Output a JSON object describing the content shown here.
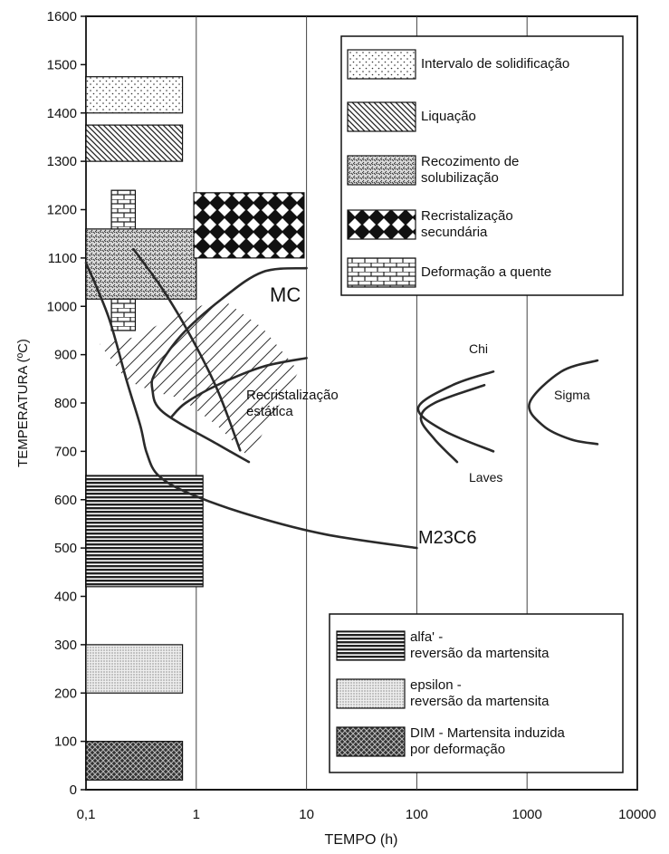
{
  "chart_data": {
    "type": "region-diagram",
    "y_label": "TEMPERATURA (ºC)",
    "x_label": "TEMPO (h)",
    "xscale": "log",
    "grid": "x",
    "xlim": [
      0.1,
      10000
    ],
    "ylim": [
      0,
      1600
    ],
    "xticks": [
      {
        "value": 0.1,
        "label": "0,1"
      },
      1,
      10,
      100,
      1000,
      10000
    ],
    "yticks": [
      0,
      100,
      200,
      300,
      400,
      500,
      600,
      700,
      800,
      900,
      1000,
      1100,
      1200,
      1300,
      1400,
      1500,
      1600
    ],
    "legend_items": [
      {
        "name": "Intervalo de solidificação",
        "pattern": "dots",
        "areas": [
          {
            "x": [
              0.1,
              0.75
            ],
            "y": [
              1400,
              1475
            ]
          }
        ]
      },
      {
        "name": "Liquação",
        "pattern": "diag",
        "areas": [
          {
            "x": [
              0.1,
              0.75
            ],
            "y": [
              1300,
              1375
            ]
          }
        ]
      },
      {
        "name": "Recozimento de\nsolubilização",
        "pattern": "speckle",
        "areas": [
          {
            "x": [
              0.1,
              1.0
            ],
            "y": [
              1015,
              1160
            ]
          }
        ]
      },
      {
        "name": "Recristalização\nsecundária",
        "pattern": "diamond",
        "areas": [
          {
            "x": [
              0.95,
              9.5
            ],
            "y": [
              1100,
              1235
            ]
          }
        ]
      },
      {
        "name": "Deformação a quente",
        "pattern": "brick",
        "areas": [
          {
            "x": [
              0.17,
              0.28
            ],
            "y": [
              1160,
              1240
            ]
          },
          {
            "x": [
              0.17,
              0.28
            ],
            "y": [
              950,
              1015
            ]
          }
        ]
      },
      {
        "name": "alfa' -\nreversão da martensita",
        "pattern": "hlines",
        "areas": [
          {
            "x": [
              0.1,
              1.15
            ],
            "y": [
              420,
              650
            ]
          }
        ]
      },
      {
        "name": "epsilon -\nreversão da martensita",
        "pattern": "finedots",
        "areas": [
          {
            "x": [
              0.1,
              0.75
            ],
            "y": [
              200,
              300
            ]
          }
        ]
      },
      {
        "name": "DIM - Martensita induzida\npor deformação",
        "pattern": "cross",
        "areas": [
          {
            "x": [
              0.1,
              0.75
            ],
            "y": [
              20,
              100
            ]
          }
        ]
      }
    ],
    "curves": [
      {
        "label": "M23C6",
        "x": [
          0.1,
          0.16,
          0.234,
          0.311,
          0.355,
          0.454,
          0.88,
          3.3,
          15,
          100
        ],
        "y": [
          1090,
          978,
          846,
          753,
          697,
          650,
          612,
          566,
          528,
          500
        ]
      },
      {
        "label": "MC",
        "x": [
          10,
          4.0,
          1.7,
          0.73,
          0.43,
          0.4,
          0.5,
          1.55,
          3.0
        ],
        "y": [
          1079,
          1071,
          1015,
          940,
          865,
          828,
          781,
          715,
          678
        ]
      },
      {
        "x": [
          0.27,
          0.5,
          0.88,
          1.55,
          2.5
        ],
        "y": [
          1118,
          1034,
          940,
          828,
          702
        ]
      },
      {
        "x": [
          10,
          4.0,
          1.55,
          0.8,
          0.6
        ],
        "y": [
          893,
          875,
          837,
          800,
          772
        ]
      },
      {
        "label": "Chi",
        "x": [
          495,
          211,
          103,
          175,
          495
        ],
        "y": [
          865,
          837,
          790,
          743,
          700
        ]
      },
      {
        "label": "Laves",
        "x": [
          410,
          145,
          109,
          145,
          232
        ],
        "y": [
          837,
          800,
          768,
          725,
          678
        ]
      },
      {
        "label": "Sigma",
        "x": [
          4350,
          2040,
          1054,
          1400,
          2470,
          4350
        ],
        "y": [
          888,
          865,
          800,
          753,
          725,
          715
        ]
      }
    ],
    "annotation": "Recristalização\nestática"
  }
}
